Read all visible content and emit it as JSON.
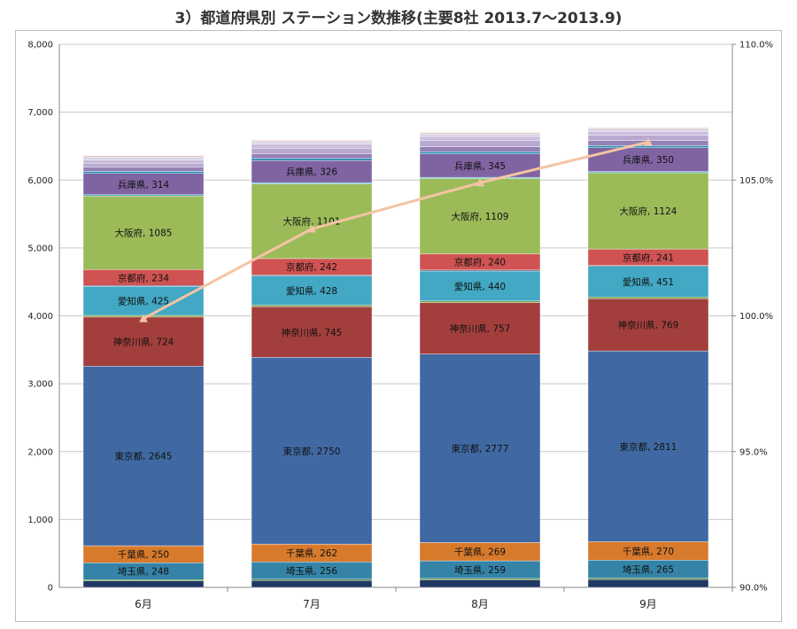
{
  "title": "3）都道府県別 ステーション数推移(主要8社 2013.7～2013.9)",
  "chart_data": {
    "type": "bar",
    "stacked": true,
    "categories": [
      "6月",
      "7月",
      "8月",
      "9月"
    ],
    "left_axis": {
      "min": 0,
      "max": 8000,
      "step": 1000,
      "tick_labels": [
        "0",
        "1,000",
        "2,000",
        "3,000",
        "4,000",
        "5,000",
        "6,000",
        "7,000",
        "8,000"
      ]
    },
    "right_axis": {
      "min": 90,
      "max": 110,
      "step": 5,
      "tick_labels": [
        "90.0%",
        "95.0%",
        "100.0%",
        "105.0%",
        "110.0%"
      ]
    },
    "grid": "horizontal",
    "legend": "none",
    "series": [
      {
        "name": "",
        "color": "#1f3864",
        "values": [
          95,
          100,
          110,
          115
        ],
        "labeled": false
      },
      {
        "name": "",
        "color": "#5a8a3a",
        "values": [
          20,
          20,
          22,
          22
        ],
        "labeled": false
      },
      {
        "name": "埼玉県",
        "color": "#3584a8",
        "values": [
          248,
          256,
          259,
          265
        ],
        "labeled": true
      },
      {
        "name": "千葉県",
        "color": "#d87a2c",
        "values": [
          250,
          262,
          269,
          270
        ],
        "labeled": true
      },
      {
        "name": "東京都",
        "color": "#4069a3",
        "values": [
          2645,
          2750,
          2777,
          2811
        ],
        "labeled": true
      },
      {
        "name": "神奈川県",
        "color": "#a23f3c",
        "values": [
          724,
          745,
          757,
          769
        ],
        "labeled": true
      },
      {
        "name": "",
        "color": "#7d9a45",
        "values": [
          25,
          25,
          25,
          25
        ],
        "labeled": false
      },
      {
        "name": "愛知県",
        "color": "#42a8c4",
        "values": [
          425,
          428,
          440,
          451
        ],
        "labeled": true
      },
      {
        "name": "",
        "color": "#3b5a88",
        "values": [
          15,
          15,
          15,
          15
        ],
        "labeled": false
      },
      {
        "name": "京都府",
        "color": "#cf5352",
        "values": [
          234,
          242,
          240,
          241
        ],
        "labeled": true
      },
      {
        "name": "大阪府",
        "color": "#9bbb59",
        "values": [
          1085,
          1101,
          1109,
          1124
        ],
        "labeled": true
      },
      {
        "name": "",
        "color": "#48b3c8",
        "values": [
          18,
          18,
          18,
          18
        ],
        "labeled": false
      },
      {
        "name": "兵庫県",
        "color": "#8064a2",
        "values": [
          314,
          326,
          345,
          350
        ],
        "labeled": true
      },
      {
        "name": "",
        "color": "#2a8fb3",
        "values": [
          30,
          30,
          30,
          30
        ],
        "labeled": false
      },
      {
        "name": "",
        "color": "#9581b5",
        "values": [
          60,
          70,
          75,
          75
        ],
        "labeled": false
      },
      {
        "name": "",
        "color": "#b9a9d0",
        "values": [
          60,
          80,
          90,
          80
        ],
        "labeled": false
      },
      {
        "name": "",
        "color": "#c9bedb",
        "values": [
          50,
          60,
          60,
          50
        ],
        "labeled": false
      },
      {
        "name": "",
        "color": "#d9d3e6",
        "values": [
          40,
          40,
          40,
          40
        ],
        "labeled": false
      },
      {
        "name": "",
        "color": "#e3c6c2",
        "values": [
          20,
          20,
          20,
          20
        ],
        "labeled": false
      }
    ],
    "line": {
      "name": "",
      "color": "#f4c4a4",
      "axis": "right",
      "values": [
        99.9,
        103.2,
        104.9,
        106.4
      ]
    }
  }
}
